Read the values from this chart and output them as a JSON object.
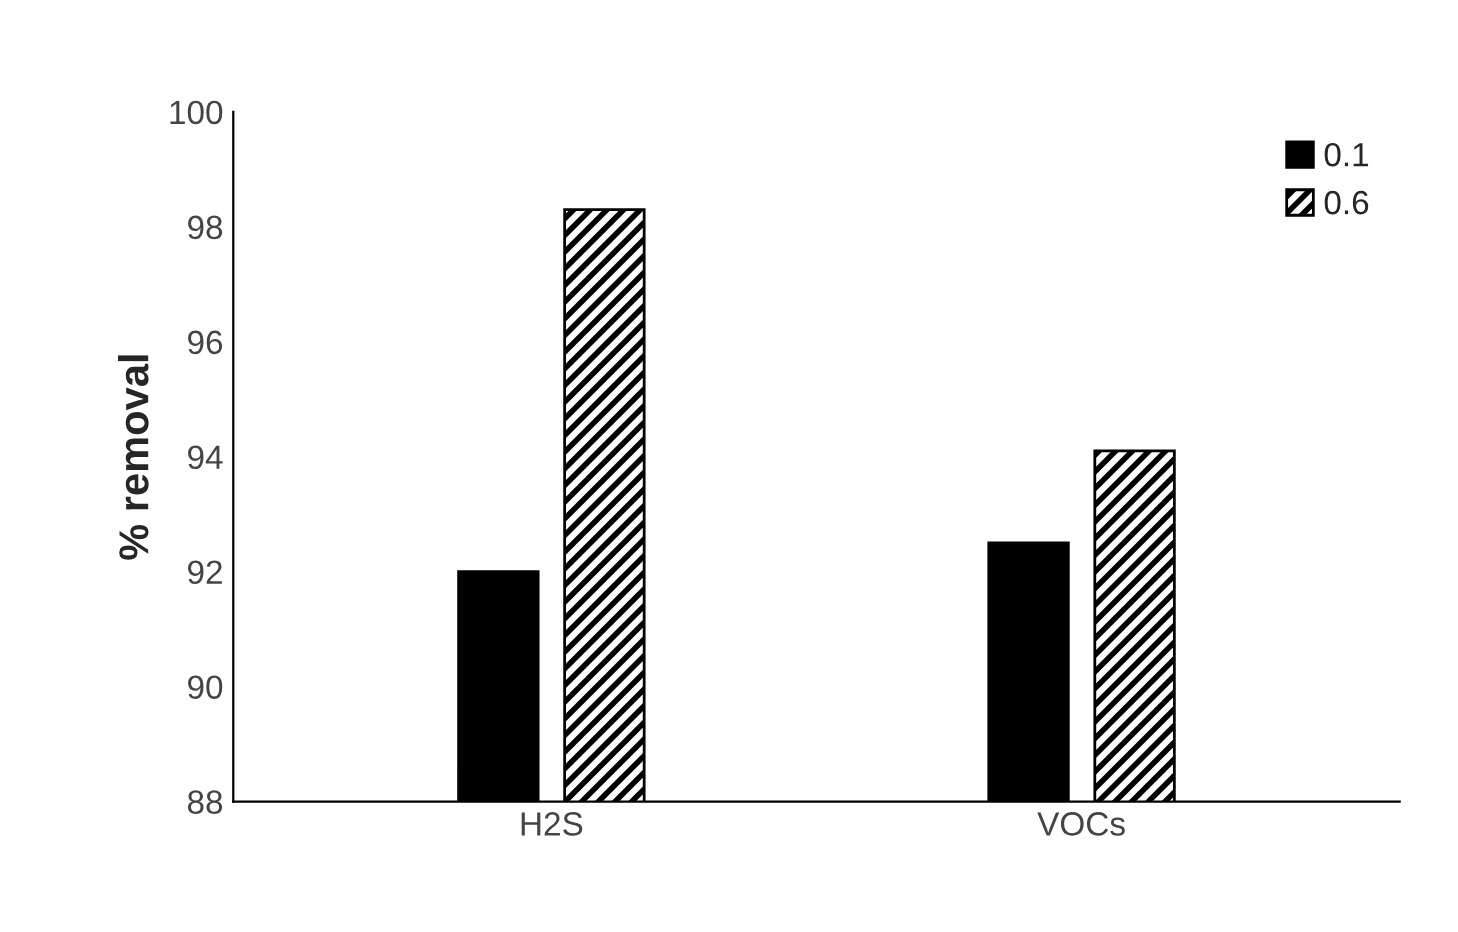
{
  "chart_data": {
    "type": "bar",
    "ylabel": "% removal",
    "categories": [
      "H2S",
      "VOCs"
    ],
    "series": [
      {
        "name": "0.1",
        "color": "#000000",
        "values": [
          92.0,
          92.5
        ]
      },
      {
        "name": "0.6",
        "color": "#000000",
        "values": [
          98.3,
          94.1
        ]
      }
    ],
    "ylim": [
      88,
      100
    ],
    "yticks": [
      88,
      90,
      92,
      94,
      96,
      98,
      100
    ],
    "grid": false,
    "legend": "top right"
  }
}
